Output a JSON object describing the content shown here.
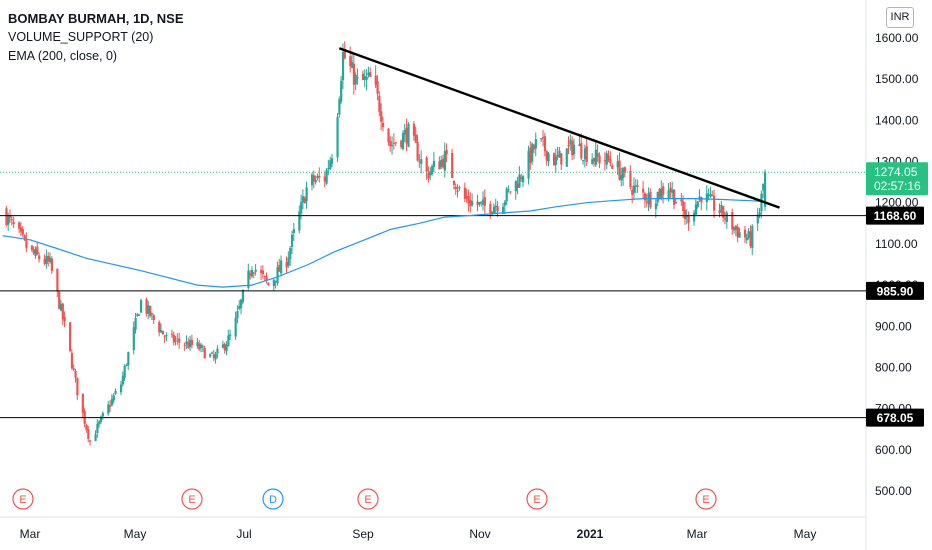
{
  "legend": {
    "title": "BOMBAY BURMAH, 1D, NSE",
    "indicator1": "VOLUME_SUPPORT (20)",
    "indicator2": "EMA (200, close, 0)"
  },
  "currency": "INR",
  "colors": {
    "up": "#26a69a",
    "down": "#ef5350",
    "ema": "#2196f3",
    "trendline": "#000000",
    "price_tag": "#26c281",
    "label_bg": "#000000",
    "event_e": "#ef5350",
    "event_d": "#2196f3"
  },
  "price_axis": {
    "ticks": [
      "1600.00",
      "1500.00",
      "1400.00",
      "1300.00",
      "1200.00",
      "1100.00",
      "1000.00",
      "900.00",
      "800.00",
      "700.00",
      "600.00",
      "500.00"
    ]
  },
  "time_axis": {
    "labels": [
      "Mar",
      "May",
      "Jul",
      "Sep",
      "Nov",
      "2021",
      "Mar",
      "May"
    ]
  },
  "current_price": {
    "value": "1274.05",
    "countdown": "02:57:16"
  },
  "levels": [
    {
      "label": "1168.60",
      "price": 1168.6
    },
    {
      "label": "985.90",
      "price": 985.9
    },
    {
      "label": "678.05",
      "price": 678.05
    }
  ],
  "events": [
    "E",
    "E",
    "D",
    "E",
    "E",
    "E"
  ],
  "chart_data": {
    "type": "line",
    "title": "BOMBAY BURMAH, 1D, NSE",
    "ylim": [
      460,
      1660
    ],
    "x_range": [
      "2020-02-15",
      "2021-06-10"
    ],
    "series": [
      {
        "name": "EMA (200, close, 0)",
        "points": [
          [
            "2020-02-15",
            1120
          ],
          [
            "2020-03-01",
            1110
          ],
          [
            "2020-03-15",
            1090
          ],
          [
            "2020-04-01",
            1065
          ],
          [
            "2020-05-01",
            1035
          ],
          [
            "2020-06-01",
            1000
          ],
          [
            "2020-06-15",
            995
          ],
          [
            "2020-07-01",
            1000
          ],
          [
            "2020-07-15",
            1020
          ],
          [
            "2020-08-01",
            1050
          ],
          [
            "2020-08-15",
            1080
          ],
          [
            "2020-09-01",
            1110
          ],
          [
            "2020-09-15",
            1135
          ],
          [
            "2020-10-01",
            1150
          ],
          [
            "2020-10-15",
            1165
          ],
          [
            "2020-11-01",
            1170
          ],
          [
            "2020-11-15",
            1175
          ],
          [
            "2020-12-01",
            1180
          ],
          [
            "2020-12-15",
            1190
          ],
          [
            "2021-01-01",
            1200
          ],
          [
            "2021-01-15",
            1205
          ],
          [
            "2021-02-01",
            1210
          ],
          [
            "2021-02-15",
            1210
          ],
          [
            "2021-03-01",
            1210
          ],
          [
            "2021-03-15",
            1208
          ],
          [
            "2021-04-01",
            1205
          ],
          [
            "2021-04-08",
            1203
          ]
        ]
      },
      {
        "name": "Trendline",
        "points": [
          [
            "2020-08-18",
            1575
          ],
          [
            "2021-04-17",
            1188
          ]
        ]
      },
      {
        "name": "Daily close",
        "points": [
          [
            "2020-02-15",
            1180
          ],
          [
            "2020-03-01",
            1080
          ],
          [
            "2020-03-12",
            1050
          ],
          [
            "2020-03-20",
            900
          ],
          [
            "2020-03-28",
            720
          ],
          [
            "2020-04-03",
            620
          ],
          [
            "2020-04-10",
            680
          ],
          [
            "2020-04-20",
            760
          ],
          [
            "2020-05-01",
            960
          ],
          [
            "2020-05-15",
            870
          ],
          [
            "2020-06-01",
            850
          ],
          [
            "2020-06-10",
            820
          ],
          [
            "2020-06-20",
            880
          ],
          [
            "2020-07-01",
            1050
          ],
          [
            "2020-07-10",
            1000
          ],
          [
            "2020-07-20",
            1060
          ],
          [
            "2020-08-01",
            1250
          ],
          [
            "2020-08-10",
            1260
          ],
          [
            "2020-08-15",
            1340
          ],
          [
            "2020-08-20",
            1560
          ],
          [
            "2020-08-28",
            1490
          ],
          [
            "2020-09-05",
            1500
          ],
          [
            "2020-09-15",
            1340
          ],
          [
            "2020-09-25",
            1370
          ],
          [
            "2020-10-05",
            1270
          ],
          [
            "2020-10-15",
            1310
          ],
          [
            "2020-10-25",
            1210
          ],
          [
            "2020-11-05",
            1190
          ],
          [
            "2020-11-15",
            1200
          ],
          [
            "2020-11-25",
            1260
          ],
          [
            "2020-12-05",
            1350
          ],
          [
            "2020-12-15",
            1300
          ],
          [
            "2020-12-25",
            1340
          ],
          [
            "2021-01-05",
            1310
          ],
          [
            "2021-01-15",
            1300
          ],
          [
            "2021-01-25",
            1240
          ],
          [
            "2021-02-05",
            1210
          ],
          [
            "2021-02-15",
            1240
          ],
          [
            "2021-02-25",
            1160
          ],
          [
            "2021-03-05",
            1220
          ],
          [
            "2021-03-15",
            1180
          ],
          [
            "2021-03-25",
            1130
          ],
          [
            "2021-04-01",
            1110
          ],
          [
            "2021-04-06",
            1180
          ],
          [
            "2021-04-09",
            1274.05
          ]
        ]
      }
    ],
    "xlabel": "",
    "ylabel": ""
  }
}
